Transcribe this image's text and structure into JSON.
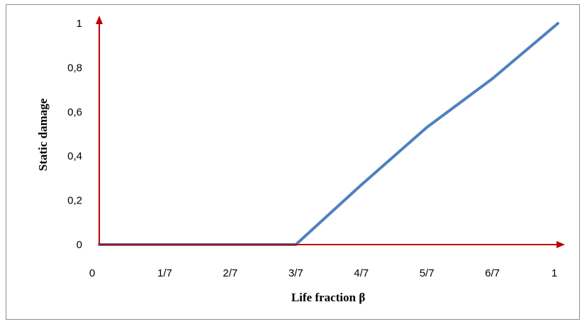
{
  "chart_data": {
    "type": "line",
    "title": "",
    "xlabel": "Life fraction β",
    "ylabel": "Static damage",
    "x_tick_labels": [
      "0",
      "1/7",
      "2/7",
      "3/7",
      "4/7",
      "5/7",
      "6/7",
      "1"
    ],
    "x_tick_values": [
      0,
      0.142857,
      0.285714,
      0.428571,
      0.571429,
      0.714286,
      0.857143,
      1
    ],
    "y_tick_labels": [
      "0",
      "0,2",
      "0,4",
      "0,6",
      "0,8",
      "1"
    ],
    "y_tick_values": [
      0,
      0.2,
      0.4,
      0.6,
      0.8,
      1
    ],
    "xlim": [
      0,
      1
    ],
    "ylim": [
      0,
      1
    ],
    "grid": false,
    "legend": "none",
    "series": [
      {
        "color": "#4f81bd",
        "x": [
          0,
          0.142857,
          0.285714,
          0.428571,
          0.571429,
          0.714286,
          0.857143,
          1
        ],
        "y": [
          0,
          0,
          0,
          0,
          0.27,
          0.53,
          0.75,
          1
        ]
      }
    ],
    "axis_color": "#c00000"
  }
}
